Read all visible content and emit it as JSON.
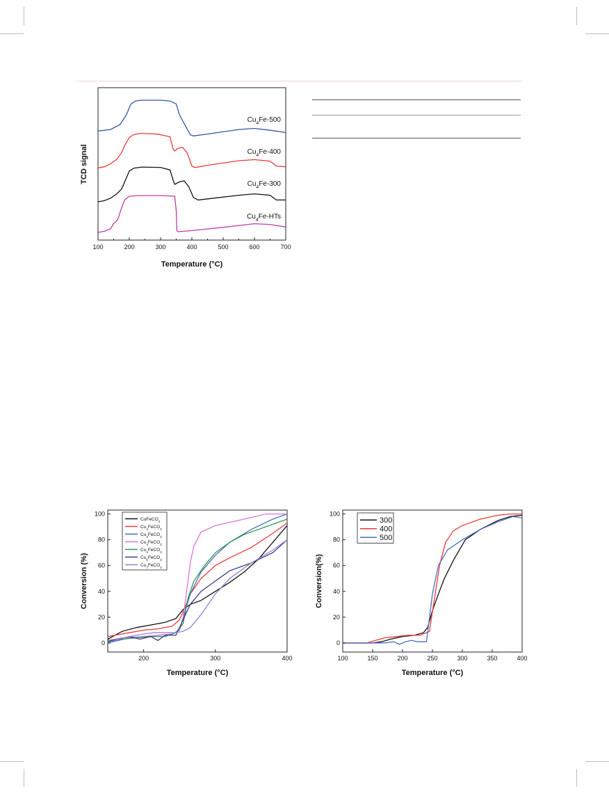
{
  "chart_data": [
    {
      "type": "line",
      "xlabel": "Temperature (°C)",
      "ylabel": "TCD signal",
      "xlim": [
        100,
        700
      ],
      "xticks": [
        "100",
        "200",
        "300",
        "400",
        "500",
        "600",
        "700"
      ],
      "y_ticks_shown": false,
      "series": [
        {
          "name": "Cu4Fe-500",
          "color": "#3355aa",
          "x": [
            100,
            140,
            170,
            190,
            205,
            220,
            240,
            300,
            330,
            350,
            360,
            375,
            395,
            405,
            450,
            550,
            600,
            650,
            700
          ],
          "y": [
            0.18,
            0.22,
            0.35,
            0.6,
            0.9,
            0.98,
            1.0,
            1.0,
            0.98,
            0.9,
            0.62,
            0.38,
            0.08,
            0.05,
            0.1,
            0.22,
            0.25,
            0.2,
            0.14
          ]
        },
        {
          "name": "Cu4Fe-400",
          "color": "#e83a3a",
          "x": [
            100,
            120,
            140,
            160,
            175,
            185,
            200,
            215,
            240,
            290,
            330,
            340,
            345,
            355,
            370,
            385,
            400,
            410,
            450,
            550,
            600,
            650,
            670,
            700
          ],
          "y": [
            0.05,
            0.08,
            0.16,
            0.28,
            0.45,
            0.65,
            0.86,
            0.94,
            0.97,
            0.95,
            0.88,
            0.55,
            0.5,
            0.57,
            0.6,
            0.45,
            0.1,
            0.06,
            0.12,
            0.24,
            0.27,
            0.23,
            0.1,
            0.08
          ]
        },
        {
          "name": "Cu4Fe-300",
          "color": "#111111",
          "x": [
            100,
            120,
            140,
            160,
            175,
            185,
            200,
            215,
            240,
            300,
            330,
            340,
            345,
            360,
            375,
            390,
            405,
            420,
            450,
            550,
            600,
            650,
            670,
            700
          ],
          "y": [
            0.0,
            0.03,
            0.1,
            0.22,
            0.35,
            0.55,
            0.85,
            0.93,
            0.96,
            0.95,
            0.88,
            0.6,
            0.48,
            0.55,
            0.58,
            0.42,
            0.12,
            0.05,
            0.08,
            0.18,
            0.22,
            0.18,
            0.05,
            0.05
          ]
        },
        {
          "name": "Cu4Fe-HTs",
          "color": "#c03aa8",
          "x": [
            100,
            120,
            140,
            150,
            158,
            165,
            172,
            185,
            200,
            230,
            300,
            345,
            350,
            352,
            355,
            400,
            500,
            600,
            650,
            700
          ],
          "y": [
            0.0,
            0.03,
            0.1,
            0.25,
            0.3,
            0.4,
            0.6,
            0.9,
            1.0,
            1.02,
            1.02,
            1.0,
            0.6,
            0.05,
            0.02,
            0.05,
            0.14,
            0.24,
            0.22,
            0.15
          ]
        }
      ],
      "legend_labels": [
        {
          "prefix": "Cu",
          "sub": "4",
          "suffix": "Fe-500"
        },
        {
          "prefix": "Cu",
          "sub": "4",
          "suffix": "Fe-400"
        },
        {
          "prefix": "Cu",
          "sub": "4",
          "suffix": "Fe-300"
        },
        {
          "prefix": "Cu",
          "sub": "4",
          "suffix": "Fe-HTs"
        }
      ]
    },
    {
      "type": "line",
      "xlabel": "Temperature (°C)",
      "ylabel": "Conversion (%)",
      "xlim": [
        150,
        400
      ],
      "ylim": [
        -7,
        103
      ],
      "xticks": [
        "200",
        "300",
        "400"
      ],
      "yticks": [
        "0",
        "20",
        "40",
        "60",
        "80",
        "100"
      ],
      "legend_position": "top-left",
      "series": [
        {
          "name": "CuFeCO3",
          "label_prefix": "CuFeCO",
          "label_sub": "3",
          "color": "#111111",
          "x": [
            150,
            160,
            170,
            190,
            210,
            230,
            245,
            255,
            265,
            280,
            300,
            320,
            340,
            360,
            380,
            400
          ],
          "y": [
            3,
            6,
            9,
            12,
            14,
            16,
            19,
            26,
            30,
            33,
            40,
            47,
            55,
            65,
            78,
            91
          ]
        },
        {
          "name": "Cu2FeCO3",
          "label_prefix": "Cu",
          "label_sub": "2",
          "label_suffix": "FeCO",
          "label_sub2": "3",
          "color": "#e83a3a",
          "x": [
            150,
            160,
            180,
            200,
            220,
            240,
            250,
            258,
            265,
            280,
            300,
            320,
            350,
            380,
            400
          ],
          "y": [
            5,
            6,
            8,
            10,
            11,
            13,
            18,
            28,
            38,
            50,
            60,
            66,
            74,
            85,
            93
          ]
        },
        {
          "name": "Cu3FeCO3",
          "label_prefix": "Cu",
          "label_sub": "3",
          "label_suffix": "FeCO",
          "label_sub2": "3",
          "color": "#4a6bc4",
          "x": [
            150,
            165,
            180,
            200,
            220,
            240,
            250,
            258,
            265,
            280,
            300,
            320,
            350,
            380,
            400
          ],
          "y": [
            0,
            2,
            4,
            5,
            6,
            7,
            10,
            25,
            38,
            55,
            68,
            78,
            88,
            96,
            100
          ]
        },
        {
          "name": "Cu4FeCO3",
          "label_prefix": "Cu",
          "label_sub": "4",
          "label_suffix": "FeCO",
          "label_sub2": "3",
          "color": "#d874d8",
          "x": [
            150,
            170,
            200,
            220,
            240,
            250,
            255,
            260,
            265,
            270,
            280,
            300,
            340,
            370,
            400
          ],
          "y": [
            2,
            4,
            5,
            6,
            7,
            10,
            20,
            40,
            62,
            75,
            86,
            91,
            96,
            100,
            100
          ]
        },
        {
          "name": "Cu5FeCO3",
          "label_prefix": "Cu",
          "label_sub": "5",
          "label_suffix": "FeCO",
          "label_sub2": "3",
          "color": "#2f9a52",
          "x": [
            150,
            170,
            190,
            210,
            230,
            245,
            255,
            262,
            270,
            285,
            300,
            320,
            340,
            370,
            400
          ],
          "y": [
            2,
            3,
            4,
            5,
            5,
            8,
            15,
            35,
            48,
            60,
            70,
            78,
            84,
            90,
            96
          ]
        },
        {
          "name": "Cu6FeCO3",
          "label_prefix": "Cu",
          "label_sub": "6",
          "label_suffix": "FeCO",
          "label_sub2": "3",
          "color": "#3a3a8a",
          "x": [
            150,
            165,
            180,
            195,
            210,
            220,
            230,
            245,
            255,
            265,
            280,
            300,
            320,
            350,
            380,
            400
          ],
          "y": [
            1,
            3,
            5,
            3,
            5,
            2,
            6,
            6,
            18,
            30,
            40,
            48,
            56,
            62,
            70,
            80
          ]
        },
        {
          "name": "Cu7FeCO3",
          "label_prefix": "Cu",
          "label_sub": "7",
          "label_suffix": "FeCO",
          "label_sub2": "3",
          "color": "#8f82d6",
          "x": [
            150,
            165,
            180,
            200,
            215,
            230,
            245,
            255,
            265,
            280,
            300,
            320,
            350,
            380,
            400
          ],
          "y": [
            0,
            3,
            5,
            7,
            8,
            8,
            8,
            9,
            12,
            22,
            38,
            50,
            62,
            72,
            80
          ]
        }
      ]
    },
    {
      "type": "line",
      "xlabel": "Temperature (°C)",
      "ylabel": "Conversion(%)",
      "xlim": [
        100,
        400
      ],
      "ylim": [
        -7,
        103
      ],
      "xticks": [
        "100",
        "150",
        "200",
        "250",
        "300",
        "350",
        "400"
      ],
      "yticks": [
        "0",
        "20",
        "40",
        "60",
        "80",
        "100"
      ],
      "legend_position": "top-left",
      "series": [
        {
          "name": "300",
          "color": "#111111",
          "x": [
            100,
            150,
            165,
            180,
            200,
            220,
            235,
            242,
            250,
            260,
            270,
            285,
            305,
            330,
            360,
            380,
            400
          ],
          "y": [
            0,
            0,
            1,
            3,
            5,
            6,
            8,
            12,
            25,
            38,
            50,
            64,
            80,
            88,
            95,
            98,
            99
          ]
        },
        {
          "name": "400",
          "color": "#e83a3a",
          "x": [
            100,
            140,
            155,
            170,
            190,
            210,
            230,
            245,
            252,
            262,
            272,
            285,
            300,
            330,
            360,
            380,
            400
          ],
          "y": [
            0,
            0,
            2,
            4,
            5,
            6,
            6,
            9,
            30,
            60,
            78,
            87,
            91,
            96,
            99,
            100,
            100
          ]
        },
        {
          "name": "500",
          "color": "#4a6bc4",
          "x": [
            100,
            150,
            170,
            185,
            195,
            205,
            215,
            225,
            240,
            243,
            250,
            260,
            275,
            300,
            330,
            360,
            385,
            400
          ],
          "y": [
            0,
            0,
            0,
            1,
            -1,
            1,
            2,
            1,
            1,
            12,
            38,
            60,
            72,
            80,
            88,
            94,
            98,
            97
          ]
        }
      ]
    }
  ]
}
